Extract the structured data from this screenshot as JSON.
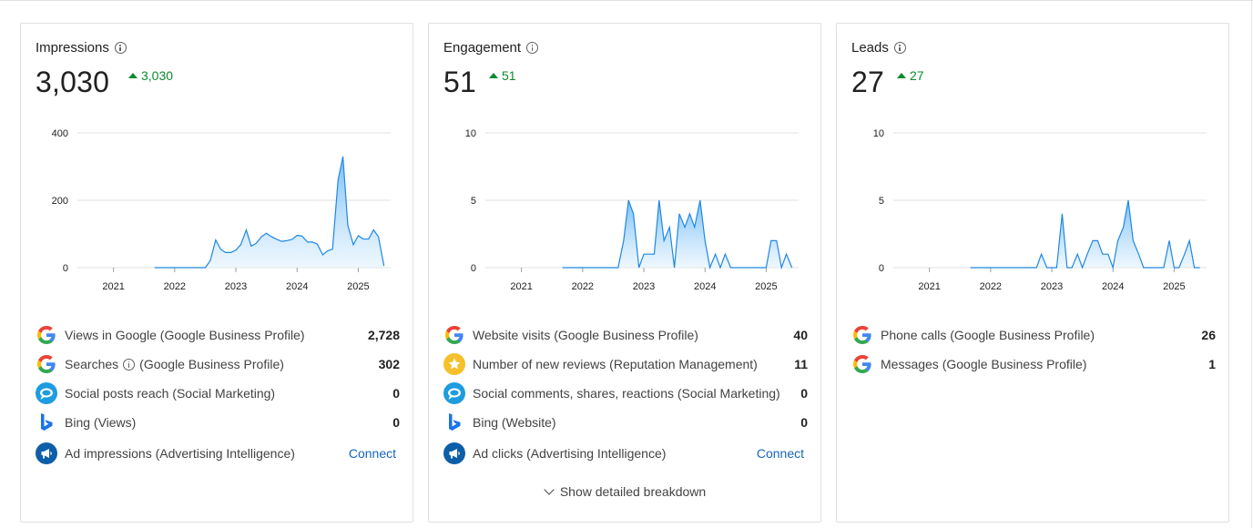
{
  "cards": [
    {
      "title": "Impressions",
      "value": "3,030",
      "delta": "3,030",
      "rows": [
        {
          "icon": "google-icon",
          "label": "Views in Google (Google Business Profile)",
          "value": "2,728"
        },
        {
          "icon": "google-icon",
          "label_pre": "Searches",
          "label_post": "(Google Business Profile)",
          "value": "302",
          "info": true
        },
        {
          "icon": "social-marketing-icon",
          "label": "Social posts reach (Social Marketing)",
          "value": "0"
        },
        {
          "icon": "bing-icon",
          "label": "Bing (Views)",
          "value": "0"
        },
        {
          "icon": "advertising-icon",
          "label": "Ad impressions (Advertising Intelligence)",
          "action": "Connect"
        }
      ]
    },
    {
      "title": "Engagement",
      "value": "51",
      "delta": "51",
      "rows": [
        {
          "icon": "google-icon",
          "label": "Website visits (Google Business Profile)",
          "value": "40"
        },
        {
          "icon": "star-icon",
          "label": "Number of new reviews (Reputation Management)",
          "value": "11"
        },
        {
          "icon": "social-marketing-icon",
          "label": "Social comments, shares, reactions (Social Marketing)",
          "value": "0"
        },
        {
          "icon": "bing-icon",
          "label": "Bing (Website)",
          "value": "0"
        },
        {
          "icon": "advertising-icon",
          "label": "Ad clicks (Advertising Intelligence)",
          "action": "Connect"
        }
      ],
      "breakdown": "Show detailed breakdown"
    },
    {
      "title": "Leads",
      "value": "27",
      "delta": "27",
      "rows": [
        {
          "icon": "google-icon",
          "label": "Phone calls (Google Business Profile)",
          "value": "26"
        },
        {
          "icon": "google-icon",
          "label": "Messages (Google Business Profile)",
          "value": "1"
        }
      ]
    }
  ],
  "chart_data": [
    {
      "type": "area",
      "x": [
        2020.0,
        2020.75,
        2021.0,
        2021.5,
        2021.67,
        2022.0,
        2022.5,
        2022.58,
        2022.67,
        2022.75,
        2022.83,
        2022.92,
        2023.0,
        2023.08,
        2023.17,
        2023.25,
        2023.33,
        2023.42,
        2023.5,
        2023.58,
        2023.67,
        2023.75,
        2023.83,
        2023.92,
        2024.0,
        2024.08,
        2024.17,
        2024.25,
        2024.33,
        2024.42,
        2024.5,
        2024.58,
        2024.67,
        2024.75,
        2024.83,
        2024.92,
        2025.0,
        2025.08,
        2025.17,
        2025.25,
        2025.33,
        2025.42,
        2025.5
      ],
      "y": [
        null,
        null,
        null,
        null,
        0,
        0,
        0,
        20,
        82,
        55,
        45,
        45,
        52,
        68,
        112,
        64,
        72,
        92,
        102,
        92,
        84,
        78,
        80,
        84,
        96,
        94,
        76,
        76,
        70,
        38,
        50,
        55,
        260,
        330,
        125,
        68,
        95,
        85,
        85,
        112,
        92,
        5,
        null
      ],
      "ylim": [
        0,
        400
      ],
      "yticks": [
        0,
        200,
        400
      ],
      "xticks": [
        "2021",
        "2022",
        "2023",
        "2024",
        "2025"
      ],
      "color": "#1e88e5"
    },
    {
      "type": "area",
      "x": [
        2021.67,
        2022.0,
        2022.5,
        2022.58,
        2022.67,
        2022.75,
        2022.83,
        2022.92,
        2023.0,
        2023.08,
        2023.17,
        2023.25,
        2023.33,
        2023.42,
        2023.5,
        2023.58,
        2023.67,
        2023.75,
        2023.83,
        2023.92,
        2024.0,
        2024.08,
        2024.17,
        2024.25,
        2024.33,
        2024.42,
        2024.5,
        2024.75,
        2025.0,
        2025.08,
        2025.17,
        2025.25,
        2025.33,
        2025.42
      ],
      "y": [
        0,
        0,
        0,
        0,
        2,
        5,
        4,
        0,
        1,
        1,
        1,
        5,
        2,
        3,
        0,
        4,
        3,
        4,
        3,
        5,
        2,
        0,
        1,
        0,
        1,
        0,
        0,
        0,
        0,
        2,
        2,
        0,
        1,
        0
      ],
      "ylim": [
        0,
        10
      ],
      "yticks": [
        0,
        5,
        10
      ],
      "xticks": [
        "2021",
        "2022",
        "2023",
        "2024",
        "2025"
      ],
      "color": "#1e88e5"
    },
    {
      "type": "area",
      "x": [
        2021.67,
        2022.0,
        2022.5,
        2022.67,
        2022.75,
        2022.83,
        2022.92,
        2023.0,
        2023.08,
        2023.17,
        2023.25,
        2023.33,
        2023.42,
        2023.5,
        2023.58,
        2023.67,
        2023.75,
        2023.83,
        2023.92,
        2024.0,
        2024.08,
        2024.17,
        2024.25,
        2024.33,
        2024.42,
        2024.5,
        2024.58,
        2024.75,
        2024.83,
        2024.92,
        2025.0,
        2025.08,
        2025.17,
        2025.25,
        2025.33,
        2025.42
      ],
      "y": [
        0,
        0,
        0,
        0,
        0,
        1,
        0,
        0,
        0,
        4,
        0,
        0,
        1,
        0,
        1,
        2,
        2,
        1,
        1,
        0,
        2,
        3,
        5,
        2,
        1,
        0,
        0,
        0,
        0,
        2,
        0,
        0,
        1,
        2,
        0,
        0
      ],
      "ylim": [
        0,
        10
      ],
      "yticks": [
        0,
        5,
        10
      ],
      "xticks": [
        "2021",
        "2022",
        "2023",
        "2024",
        "2025"
      ],
      "color": "#1e88e5"
    }
  ]
}
